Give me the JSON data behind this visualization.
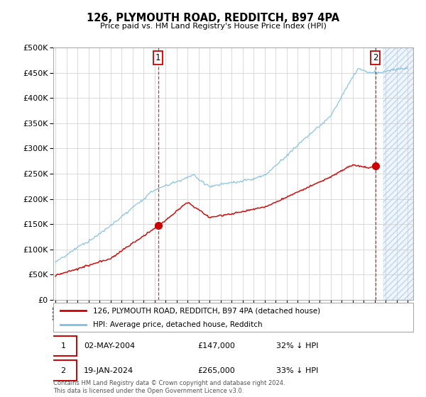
{
  "title": "126, PLYMOUTH ROAD, REDDITCH, B97 4PA",
  "subtitle": "Price paid vs. HM Land Registry's House Price Index (HPI)",
  "legend_line1": "126, PLYMOUTH ROAD, REDDITCH, B97 4PA (detached house)",
  "legend_line2": "HPI: Average price, detached house, Redditch",
  "annotation1_date": "02-MAY-2004",
  "annotation1_price": "£147,000",
  "annotation1_hpi": "32% ↓ HPI",
  "annotation2_date": "19-JAN-2024",
  "annotation2_price": "£265,000",
  "annotation2_hpi": "33% ↓ HPI",
  "footer": "Contains HM Land Registry data © Crown copyright and database right 2024.\nThis data is licensed under the Open Government Licence v3.0.",
  "hpi_color": "#7fbfdf",
  "price_color": "#cc0000",
  "annotation_color": "#cc0000",
  "bg_hatch_color": "#e8f0f8",
  "ylim": [
    0,
    500000
  ],
  "yticks": [
    0,
    50000,
    100000,
    150000,
    200000,
    250000,
    300000,
    350000,
    400000,
    450000,
    500000
  ],
  "year_start": 1995,
  "year_end": 2027,
  "sale1_year": 2004.33,
  "sale1_price": 147000,
  "sale2_year": 2024.05,
  "sale2_price": 265000,
  "hpi_cutoff_year": 2024.5
}
